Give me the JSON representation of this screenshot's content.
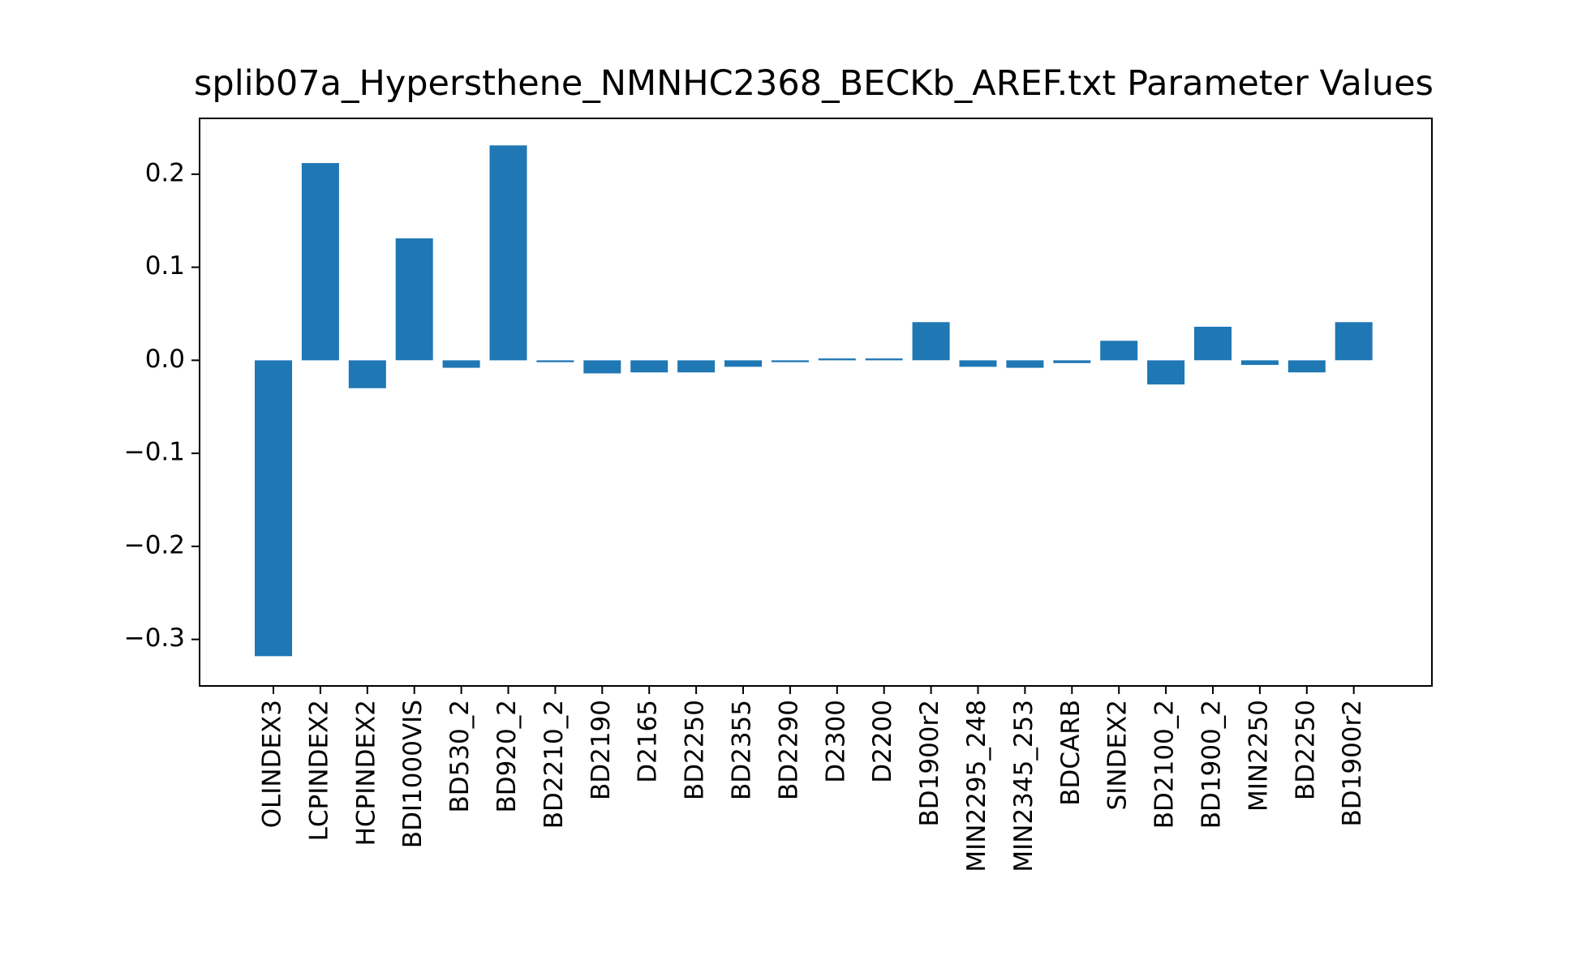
{
  "chart_data": {
    "type": "bar",
    "title": "splib07a_Hypersthene_NMNHC2368_BECKb_AREF.txt Parameter Values",
    "xlabel": "",
    "ylabel": "",
    "ylim": [
      -0.35,
      0.26
    ],
    "yticks": [
      0.2,
      0.1,
      0.0,
      -0.1,
      -0.2,
      -0.3
    ],
    "ytick_labels": [
      "0.2",
      "0.1",
      "0.0",
      "−0.1",
      "−0.2",
      "−0.3"
    ],
    "grid": false,
    "bar_color": "#1f77b4",
    "categories": [
      "OLINDEX3",
      "LCPINDEX2",
      "HCPINDEX2",
      "BDI1000VIS",
      "BD530_2",
      "BD920_2",
      "BD2210_2",
      "BD2190",
      "D2165",
      "BD2250",
      "BD2355",
      "BD2290",
      "D2300",
      "D2200",
      "BD1900r2",
      "MIN2295_248",
      "MIN2345_253",
      "BDCARB",
      "SINDEX2",
      "BD2100_2",
      "BD1900_2",
      "MIN2250",
      "BD2250",
      "BD1900r2"
    ],
    "values": [
      -0.318,
      0.212,
      -0.03,
      0.131,
      -0.008,
      0.231,
      -0.002,
      -0.014,
      -0.013,
      -0.013,
      -0.007,
      -0.002,
      0.002,
      0.002,
      0.041,
      -0.007,
      -0.008,
      -0.003,
      0.021,
      -0.026,
      0.036,
      -0.005,
      -0.013,
      0.041
    ]
  }
}
